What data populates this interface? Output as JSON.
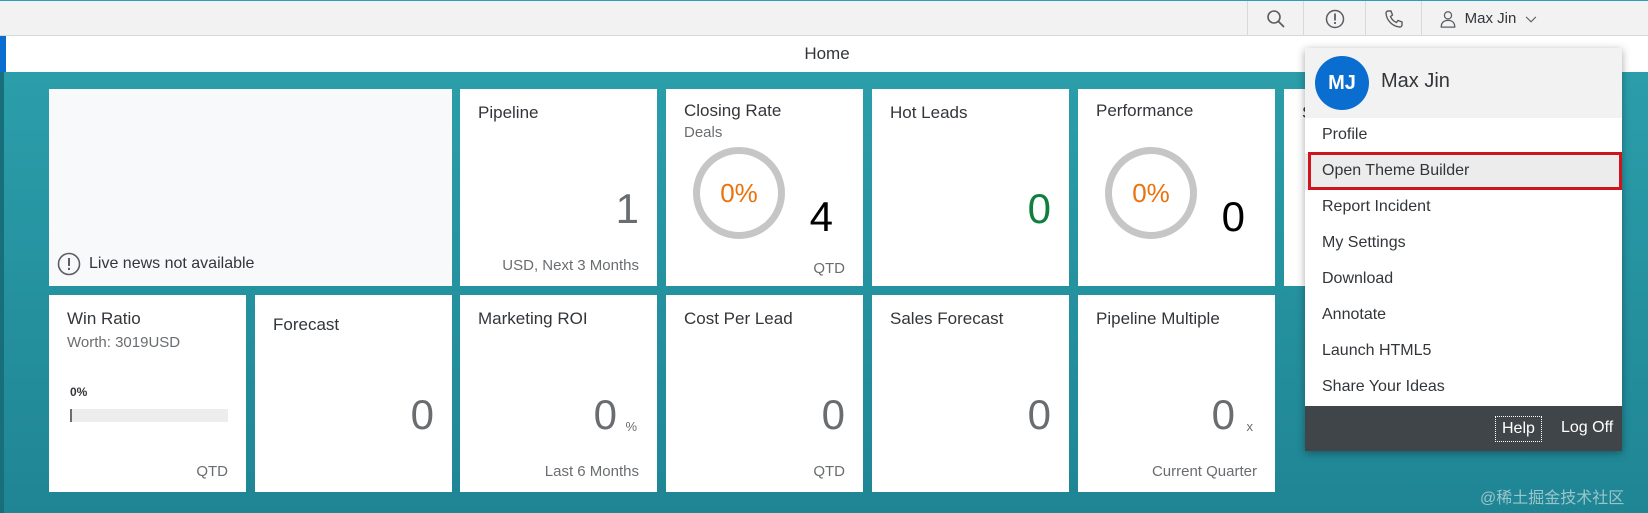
{
  "topbar": {
    "search_icon": "search-icon",
    "alert_icon": "alert-icon",
    "phone_icon": "phone-icon",
    "user_name": "Max Jin"
  },
  "page": {
    "title": "Home"
  },
  "news": {
    "message": "Live news not available"
  },
  "tiles": {
    "pipeline": {
      "title": "Pipeline",
      "value": "1",
      "footer": "USD, Next 3 Months"
    },
    "closing_rate": {
      "title": "Closing Rate",
      "subtitle": "Deals",
      "percent": "0%",
      "value": "4",
      "footer": "QTD"
    },
    "hot_leads": {
      "title": "Hot Leads",
      "value": "0",
      "value_color": "#107e3e"
    },
    "performance": {
      "title": "Performance",
      "percent": "0%",
      "value": "0"
    },
    "partial": {
      "title": "S"
    },
    "win_ratio": {
      "title": "Win Ratio",
      "subtitle": "Worth: 3019USD",
      "progress_label": "0%",
      "progress": 0,
      "footer": "QTD"
    },
    "forecast": {
      "title": "Forecast",
      "value": "0"
    },
    "marketing_roi": {
      "title": "Marketing ROI",
      "value": "0",
      "unit": "%",
      "footer": "Last 6 Months"
    },
    "cost_per_lead": {
      "title": "Cost Per Lead",
      "value": "0",
      "footer": "QTD"
    },
    "sales_forecast": {
      "title": "Sales Forecast",
      "value": "0"
    },
    "pipeline_multiple": {
      "title": "Pipeline Multiple",
      "value": "0",
      "unit": "x",
      "footer": "Current Quarter"
    }
  },
  "user_menu": {
    "initials": "MJ",
    "name": "Max Jin",
    "items": [
      "Profile",
      "Open Theme Builder",
      "Report Incident",
      "My Settings",
      "Download",
      "Annotate",
      "Launch HTML5",
      "Share Your Ideas"
    ],
    "help": "Help",
    "logoff": "Log Off"
  },
  "watermark": "@稀土掘金技术社区",
  "colors": {
    "accent": "#0a6ed1",
    "ring_text": "#e9730c",
    "highlight": "#d0141e",
    "teal_bg": "#1f8a98"
  }
}
